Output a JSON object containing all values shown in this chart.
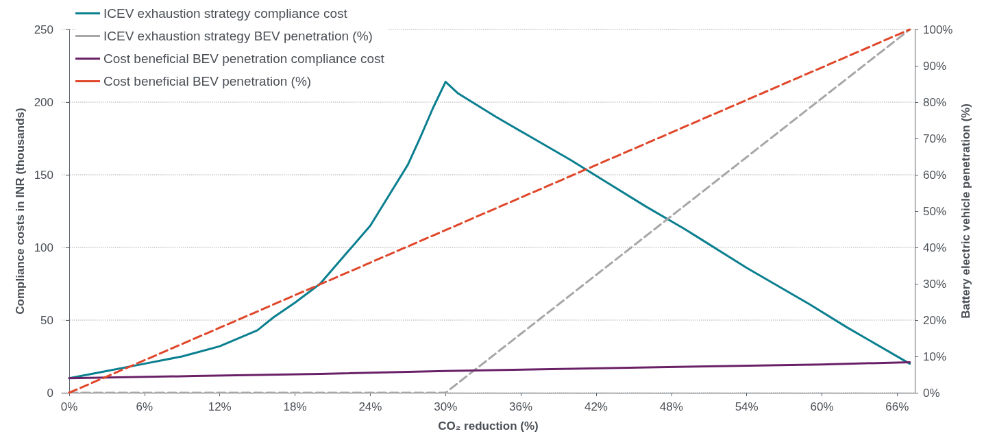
{
  "chart_data": {
    "type": "line",
    "xlabel": "CO₂ reduction (%)",
    "ylabel": "Compliance costs in INR (thousands)",
    "y2label": "Battery electric vehicle penetration (%)",
    "xlim": [
      -0.6,
      67.4
    ],
    "xticks": [
      {
        "value": 0,
        "label": "0%"
      },
      {
        "value": 6,
        "label": "6%"
      },
      {
        "value": 12,
        "label": "12%"
      },
      {
        "value": 18,
        "label": "18%"
      },
      {
        "value": 24,
        "label": "24%"
      },
      {
        "value": 30,
        "label": "30%"
      },
      {
        "value": 36,
        "label": "36%"
      },
      {
        "value": 42,
        "label": "42%"
      },
      {
        "value": 48,
        "label": "48%"
      },
      {
        "value": 54,
        "label": "54%"
      },
      {
        "value": 60,
        "label": "60%"
      },
      {
        "value": 66,
        "label": "66%"
      }
    ],
    "ylim": [
      0,
      250
    ],
    "yticks": [
      0,
      50,
      100,
      150,
      200,
      250
    ],
    "y2lim": [
      0,
      100
    ],
    "y2ticks": [
      {
        "value": 0,
        "label": "0%"
      },
      {
        "value": 10,
        "label": "10%"
      },
      {
        "value": 20,
        "label": "20%"
      },
      {
        "value": 30,
        "label": "30%"
      },
      {
        "value": 40,
        "label": "40%"
      },
      {
        "value": 50,
        "label": "50%"
      },
      {
        "value": 60,
        "label": "60%"
      },
      {
        "value": 70,
        "label": "70%"
      },
      {
        "value": 80,
        "label": "80%"
      },
      {
        "value": 90,
        "label": "90%"
      },
      {
        "value": 100,
        "label": "100%"
      }
    ],
    "grid": "y",
    "legend": "top left",
    "marker": "none",
    "series": [
      {
        "name": "ICEV exhaustion strategy compliance cost",
        "color": "#0a7f8f",
        "line_style": "solid",
        "x": [
          0,
          3,
          6,
          9,
          12,
          15,
          16.3,
          18,
          20,
          22,
          24,
          27,
          28,
          29,
          30,
          31,
          34,
          37,
          40,
          43,
          46,
          49,
          54,
          59,
          62,
          67
        ],
        "values": [
          10,
          15,
          20,
          25,
          32,
          43,
          52,
          62,
          75,
          95,
          115,
          157,
          176,
          196,
          214,
          206,
          190,
          175,
          160,
          144,
          128,
          113,
          86,
          61,
          45,
          20
        ]
      },
      {
        "name": "ICEV exhaustion strategy BEV penetration (%)",
        "color": "#a7a7a9",
        "line_style": "dashed",
        "axis": "y2",
        "x": [
          0,
          30,
          67
        ],
        "values": [
          0,
          0,
          100
        ]
      },
      {
        "name": "Cost beneficial BEV penetration compliance cost",
        "color": "#6a2066",
        "line_style": "solid",
        "x": [
          0,
          10,
          20,
          30,
          40,
          50,
          60,
          67
        ],
        "values": [
          10,
          11.5,
          13,
          15,
          16.5,
          18,
          19.5,
          21
        ]
      },
      {
        "name": "Cost beneficial BEV penetration (%)",
        "color": "#e0472a",
        "line_style": "dashed",
        "axis": "y2",
        "x": [
          0,
          67
        ],
        "values": [
          0,
          100
        ]
      }
    ]
  }
}
